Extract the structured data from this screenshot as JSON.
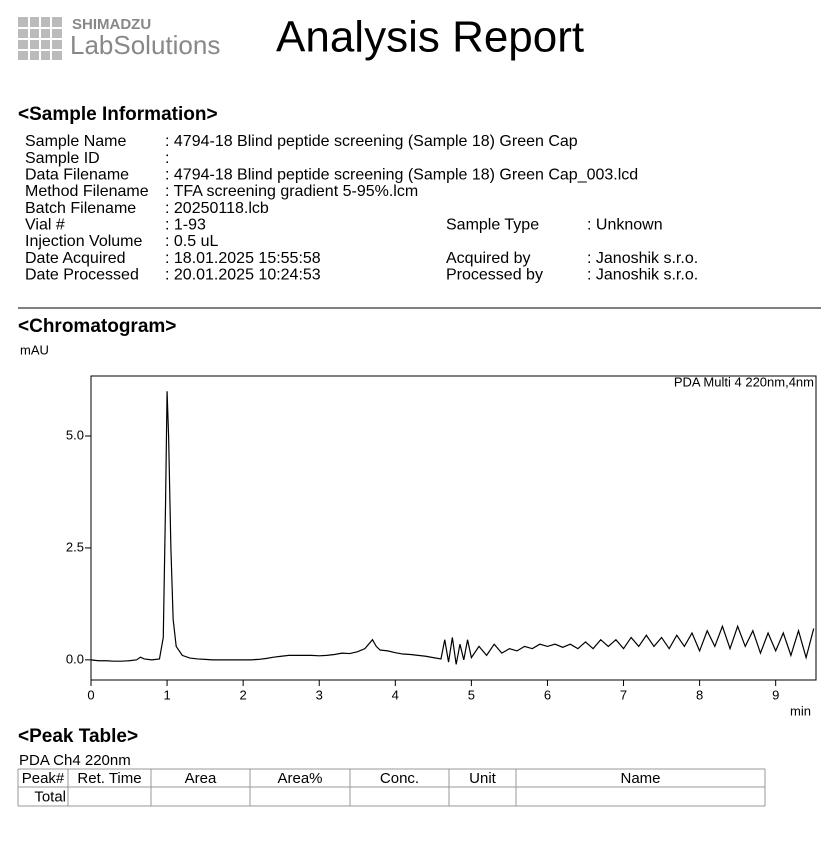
{
  "header": {
    "brand": "SHIMADZU",
    "product": "LabSolutions",
    "title": "Analysis Report"
  },
  "sample_info": {
    "heading": "<Sample Information>",
    "left": [
      {
        "label": "Sample Name",
        "value": ": 4794-18 Blind peptide screening (Sample 18) Green Cap"
      },
      {
        "label": "Sample ID",
        "value": ":"
      },
      {
        "label": "Data Filename",
        "value": ": 4794-18 Blind peptide screening (Sample 18) Green Cap_003.lcd"
      },
      {
        "label": "Method Filename",
        "value": ": TFA screening gradient 5-95%.lcm"
      },
      {
        "label": "Batch Filename",
        "value": ": 20250118.lcb"
      },
      {
        "label": "Vial #",
        "value": ": 1-93"
      },
      {
        "label": "Injection Volume",
        "value": ": 0.5 uL"
      },
      {
        "label": "Date Acquired",
        "value": ": 18.01.2025 15:55:58"
      },
      {
        "label": "Date Processed",
        "value": ": 20.01.2025 10:24:53"
      }
    ],
    "right": [
      {
        "row": 5,
        "label": "Sample Type",
        "value": ": Unknown"
      },
      {
        "row": 7,
        "label": "Acquired by",
        "value": ": Janoshik s.r.o."
      },
      {
        "row": 8,
        "label": "Processed by",
        "value": ": Janoshik s.r.o."
      }
    ]
  },
  "chromatogram_heading": "<Chromatogram>",
  "chart_data": {
    "type": "line",
    "annotation": "PDA Multi 4 220nm,4nm",
    "y_label": "mAU",
    "x_label": "min",
    "color": "#000000",
    "x": [
      0,
      0.1,
      0.2,
      0.3,
      0.4,
      0.5,
      0.6,
      0.65,
      0.7,
      0.8,
      0.9,
      0.95,
      0.98,
      1.0,
      1.02,
      1.05,
      1.08,
      1.12,
      1.2,
      1.3,
      1.4,
      1.5,
      1.6,
      1.7,
      1.8,
      1.9,
      2.0,
      2.1,
      2.2,
      2.3,
      2.4,
      2.5,
      2.6,
      2.7,
      2.8,
      2.9,
      3.0,
      3.1,
      3.2,
      3.3,
      3.4,
      3.5,
      3.6,
      3.7,
      3.75,
      3.8,
      3.9,
      4.0,
      4.1,
      4.2,
      4.3,
      4.4,
      4.5,
      4.6,
      4.65,
      4.7,
      4.75,
      4.8,
      4.85,
      4.9,
      4.95,
      5.0,
      5.1,
      5.2,
      5.3,
      5.4,
      5.5,
      5.6,
      5.7,
      5.8,
      5.9,
      6.0,
      6.1,
      6.2,
      6.3,
      6.4,
      6.5,
      6.6,
      6.7,
      6.8,
      6.9,
      7.0,
      7.1,
      7.2,
      7.3,
      7.4,
      7.5,
      7.6,
      7.7,
      7.8,
      7.9,
      8.0,
      8.1,
      8.2,
      8.3,
      8.4,
      8.5,
      8.6,
      8.7,
      8.8,
      8.9,
      9.0,
      9.1,
      9.2,
      9.3,
      9.4,
      9.5
    ],
    "values": [
      0.0,
      -0.02,
      -0.02,
      -0.03,
      -0.03,
      -0.02,
      0.0,
      0.06,
      0.02,
      0.0,
      0.02,
      0.5,
      3.5,
      6.0,
      5.0,
      2.5,
      0.9,
      0.3,
      0.1,
      0.04,
      0.02,
      0.01,
      0.0,
      0.0,
      0.0,
      0.0,
      0.0,
      0.0,
      0.01,
      0.03,
      0.06,
      0.08,
      0.1,
      0.1,
      0.1,
      0.1,
      0.09,
      0.1,
      0.12,
      0.15,
      0.14,
      0.18,
      0.25,
      0.45,
      0.3,
      0.22,
      0.2,
      0.16,
      0.13,
      0.12,
      0.1,
      0.08,
      0.05,
      0.02,
      0.45,
      -0.05,
      0.5,
      -0.1,
      0.35,
      0.0,
      0.45,
      0.05,
      0.3,
      0.1,
      0.35,
      0.15,
      0.25,
      0.2,
      0.3,
      0.25,
      0.35,
      0.3,
      0.35,
      0.28,
      0.35,
      0.25,
      0.4,
      0.25,
      0.45,
      0.3,
      0.45,
      0.25,
      0.5,
      0.3,
      0.55,
      0.3,
      0.5,
      0.25,
      0.55,
      0.3,
      0.6,
      0.2,
      0.65,
      0.3,
      0.75,
      0.25,
      0.75,
      0.3,
      0.65,
      0.15,
      0.6,
      0.2,
      0.6,
      0.1,
      0.65,
      0.05,
      0.7
    ],
    "xlim": [
      0,
      9.53
    ],
    "ylim": [
      -0.45,
      6.34
    ],
    "xticks": [
      0,
      1,
      2,
      3,
      4,
      5,
      6,
      7,
      8,
      9
    ],
    "yticks": [
      {
        "value": 0,
        "label": "0.0"
      },
      {
        "value": 2.5,
        "label": "2.5"
      },
      {
        "value": 5,
        "label": "5.0"
      }
    ]
  },
  "peak_table": {
    "heading": "<Peak Table>",
    "caption": "PDA Ch4 220nm",
    "columns": [
      "Peak#",
      "Ret. Time",
      "Area",
      "Area%",
      "Conc.",
      "Unit",
      "Name"
    ],
    "total_label": "Total"
  }
}
